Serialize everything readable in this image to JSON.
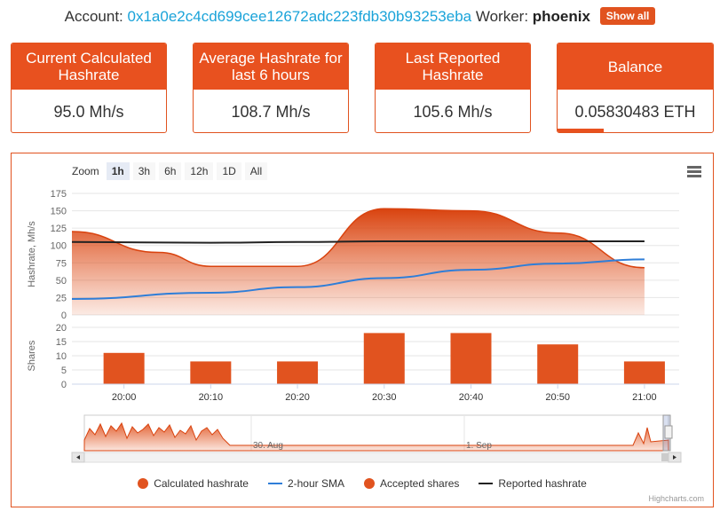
{
  "header": {
    "account_label": "Account:",
    "account_address": "0x1a0e2c4cd699cee12672adc223fdb30b93253eba",
    "worker_label": "Worker:",
    "worker_name": "phoenix",
    "show_all_label": "Show all"
  },
  "cards": [
    {
      "title": "Current Calculated Hashrate",
      "value": "95.0 Mh/s"
    },
    {
      "title": "Average Hashrate for last 6 hours",
      "value": "108.7 Mh/s"
    },
    {
      "title": "Last Reported Hashrate",
      "value": "105.6 Mh/s"
    },
    {
      "title": "Balance",
      "value": "0.05830483 ETH"
    }
  ],
  "chart": {
    "zoom_label": "Zoom",
    "zoom_options": [
      "1h",
      "3h",
      "6h",
      "12h",
      "1D",
      "All"
    ],
    "zoom_selected": "1h",
    "credits": "Highcharts.com",
    "navigator_labels": [
      "30. Aug",
      "1. Sep"
    ],
    "legend": [
      "Calculated hashrate",
      "2-hour SMA",
      "Accepted shares",
      "Reported hashrate"
    ],
    "colors": {
      "accent": "#e1531f",
      "sma": "#2f7ed8",
      "reported": "#222222"
    }
  },
  "chart_data": {
    "type": "area",
    "x": [
      "20:00",
      "20:10",
      "20:20",
      "20:30",
      "20:40",
      "20:50",
      "21:00"
    ],
    "hashrate_axis": {
      "ylabel": "Hashrate, Mh/s",
      "ylim": [
        0,
        175
      ],
      "ticks": [
        0,
        25,
        50,
        75,
        100,
        125,
        150,
        175
      ],
      "series": [
        {
          "name": "Calculated hashrate",
          "type": "area",
          "points": [
            [
              "19:54",
              120
            ],
            [
              "20:04",
              90
            ],
            [
              "20:10",
              70
            ],
            [
              "20:16",
              70
            ],
            [
              "20:20",
              70
            ],
            [
              "20:30",
              153
            ],
            [
              "20:40",
              150
            ],
            [
              "20:50",
              118
            ],
            [
              "21:00",
              68
            ]
          ]
        },
        {
          "name": "2-hour SMA",
          "type": "line",
          "points": [
            [
              "19:54",
              23
            ],
            [
              "20:10",
              32
            ],
            [
              "20:20",
              40
            ],
            [
              "20:30",
              53
            ],
            [
              "20:40",
              65
            ],
            [
              "20:50",
              74
            ],
            [
              "21:00",
              80
            ]
          ]
        },
        {
          "name": "Reported hashrate",
          "type": "line",
          "points": [
            [
              "19:54",
              105
            ],
            [
              "20:10",
              104
            ],
            [
              "20:20",
              105
            ],
            [
              "20:30",
              106
            ],
            [
              "20:40",
              106
            ],
            [
              "20:50",
              106
            ],
            [
              "21:00",
              106
            ]
          ]
        }
      ]
    },
    "shares_axis": {
      "ylabel": "Shares",
      "ylim": [
        0,
        20
      ],
      "ticks": [
        0,
        5,
        10,
        15,
        20
      ],
      "series": [
        {
          "name": "Accepted shares",
          "type": "bar",
          "values": [
            11,
            8,
            8,
            18,
            18,
            14,
            8
          ]
        }
      ]
    }
  }
}
